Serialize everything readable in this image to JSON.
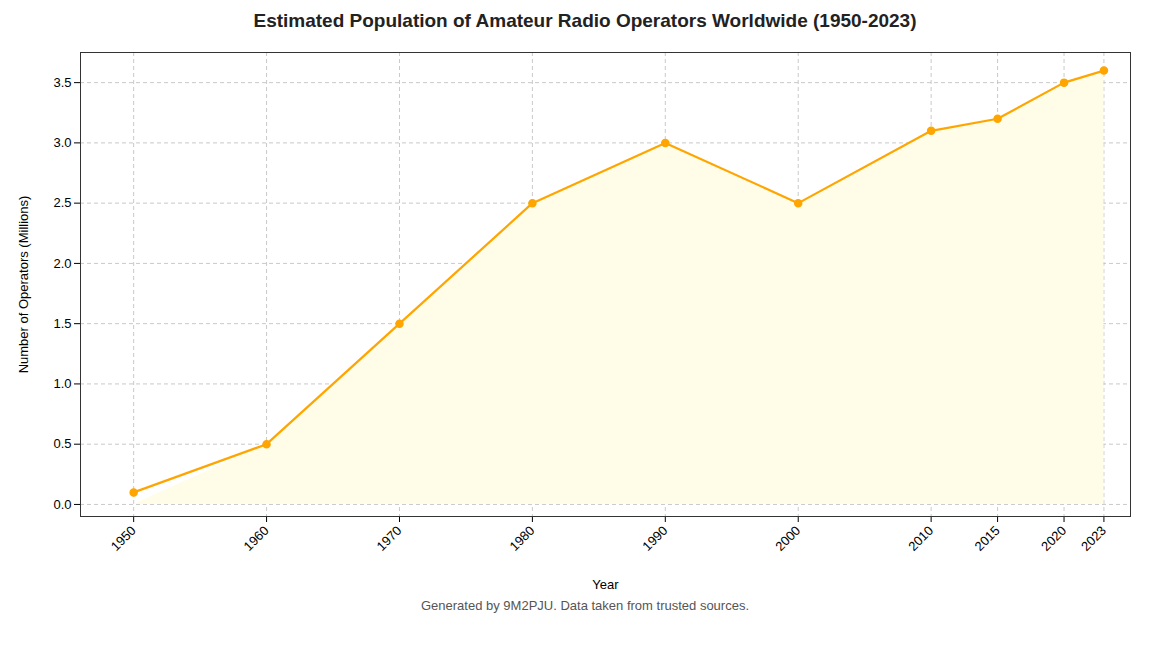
{
  "chart_data": {
    "type": "line",
    "title": "Estimated Population of Amateur Radio Operators Worldwide (1950-2023)",
    "footnote": "Generated by 9M2PJU. Data taken from trusted sources.",
    "x_label": "Year",
    "y_label": "Number of Operators (Millions)",
    "x": [
      1950,
      1960,
      1970,
      1980,
      1990,
      2000,
      2010,
      2015,
      2020,
      2023
    ],
    "series": [
      {
        "type": "area",
        "color": "#FFFDE7",
        "values": [
          null,
          0.5,
          1.5,
          2.5,
          3.0,
          2.5,
          3.1,
          3.2,
          3.5,
          3.6
        ]
      },
      {
        "type": "line",
        "color": "#FFA500",
        "marker": "circle",
        "line_style": "solid",
        "values": [
          0.1,
          0.5,
          1.5,
          2.5,
          3.0,
          2.5,
          3.1,
          3.2,
          3.5,
          3.6
        ]
      }
    ],
    "xlim": [
      1946,
      2025
    ],
    "xticks": [
      1950,
      1960,
      1970,
      1980,
      1990,
      2000,
      2010,
      2015,
      2020,
      2023
    ],
    "ylim": [
      -0.1,
      3.75
    ],
    "yticks": [
      {
        "value": 0,
        "label": "0.0"
      },
      0.5,
      {
        "value": 1,
        "label": "1.0"
      },
      1.5,
      {
        "value": 2,
        "label": "2.0"
      },
      2.5,
      {
        "value": 3,
        "label": "3.0"
      },
      3.5
    ],
    "grid": true
  }
}
